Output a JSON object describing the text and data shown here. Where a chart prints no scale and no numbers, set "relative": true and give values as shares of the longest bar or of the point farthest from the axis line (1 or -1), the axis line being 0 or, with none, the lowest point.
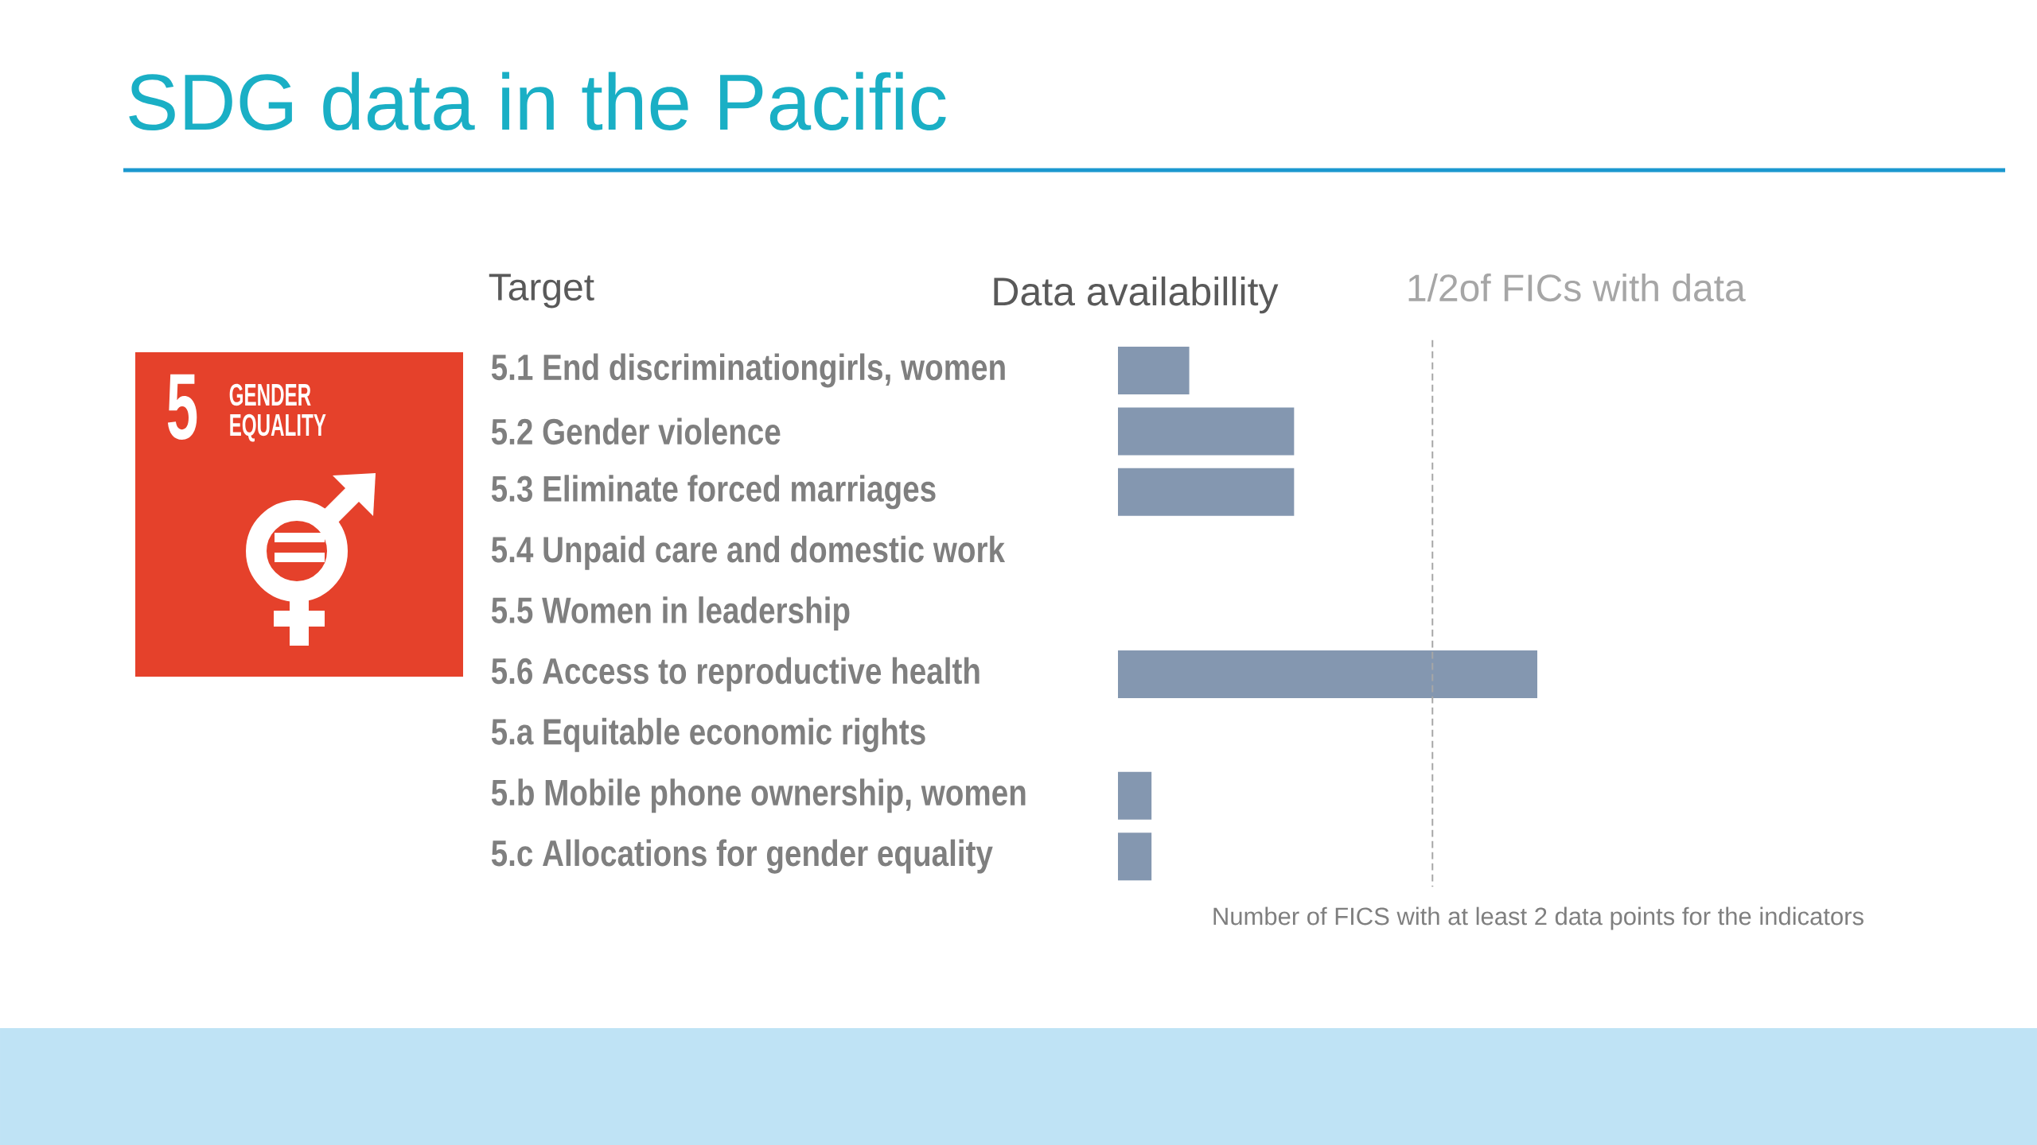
{
  "chart_data": {
    "type": "bar",
    "orientation": "horizontal",
    "relative": true,
    "title": "SDG data in the Pacific",
    "ylabel": "Target",
    "xlabel": "Number of FICS with at least 2 data points for the indicators",
    "annotations": [
      "Data availabillity",
      "5",
      "GENDER EQUALITY"
    ],
    "categories": [
      "5.1 End discriminationgirls, women",
      "5.2 Gender violence",
      "5.3 Eliminate forced marriages",
      "5.4 Unpaid care and domestic work",
      "5.5 Women in leadership",
      "5.6 Access to reproductive health",
      "5.a Equitable economic rights",
      "5.b Mobile phone ownership, women",
      "5.c Allocations for gender equality"
    ],
    "values": [
      0.17,
      0.42,
      0.42,
      null,
      null,
      1,
      null,
      0.08,
      0.08
    ],
    "color": "#8497b0",
    "ref_lines": [
      {
        "axis": "x",
        "value": 0.75,
        "label": "1/2of FICs with data",
        "color": "#a6a6a6",
        "line_style": "dashed"
      }
    ]
  }
}
